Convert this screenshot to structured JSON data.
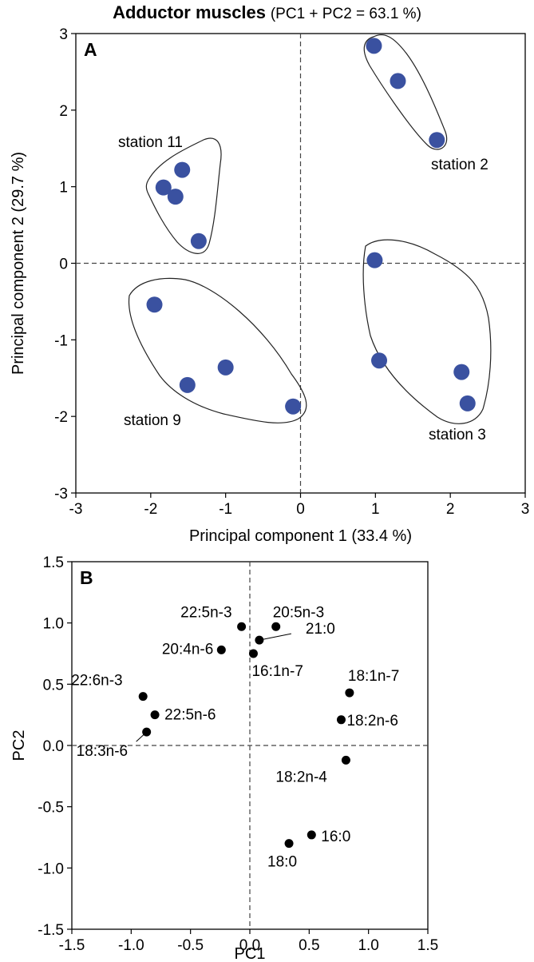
{
  "title": {
    "main": "Adductor muscles",
    "sub": "(PC1 + PC2 = 63.1 %)"
  },
  "chart_data": [
    {
      "type": "scatter",
      "panel_label": "A",
      "xlabel": "Principal component 1 (33.4 %)",
      "ylabel": "Principal component 2 (29.7 %)",
      "xlim": [
        -3,
        3
      ],
      "ylim": [
        -3,
        3
      ],
      "x_ticks": [
        "-3",
        "-2",
        "-1",
        "0",
        "1",
        "2",
        "3"
      ],
      "y_ticks": [
        "3",
        "2",
        "1",
        "0",
        "-1",
        "-2",
        "-3"
      ],
      "reference_lines": {
        "x": 0,
        "y": 0,
        "style": "dashed"
      },
      "marker_color": "#3a51a0",
      "groups": [
        {
          "label": "station 2",
          "points": [
            [
              0.98,
              2.84
            ],
            [
              1.3,
              2.38
            ],
            [
              1.82,
              1.61
            ]
          ]
        },
        {
          "label": "station 11",
          "points": [
            [
              -1.58,
              1.22
            ],
            [
              -1.83,
              0.99
            ],
            [
              -1.67,
              0.87
            ],
            [
              -1.36,
              0.29
            ]
          ]
        },
        {
          "label": "station 3",
          "points": [
            [
              0.99,
              0.04
            ],
            [
              1.05,
              -1.27
            ],
            [
              2.15,
              -1.42
            ],
            [
              2.23,
              -1.83
            ]
          ]
        },
        {
          "label": "station 9",
          "points": [
            [
              -1.95,
              -0.54
            ],
            [
              -1.51,
              -1.59
            ],
            [
              -1.0,
              -1.36
            ],
            [
              -0.1,
              -1.87
            ]
          ]
        }
      ]
    },
    {
      "type": "scatter",
      "panel_label": "B",
      "xlabel": "PC1",
      "ylabel": "PC2",
      "xlim": [
        -1.5,
        1.5
      ],
      "ylim": [
        -1.5,
        1.5
      ],
      "x_ticks": [
        "-1.5",
        "-1.0",
        "-0.5",
        "0.0",
        "0.5",
        "1.0",
        "1.5"
      ],
      "y_ticks": [
        "1.5",
        "1.0",
        "0.5",
        "0.0",
        "-0.5",
        "-1.0",
        "-1.5"
      ],
      "reference_lines": {
        "x": 0,
        "y": 0,
        "style": "dashed"
      },
      "marker_color": "#000000",
      "points": [
        {
          "label": "22:5n-3",
          "x": -0.07,
          "y": 0.97
        },
        {
          "label": "20:5n-3",
          "x": 0.22,
          "y": 0.97
        },
        {
          "label": "21:0",
          "x": 0.08,
          "y": 0.86
        },
        {
          "label": "20:4n-6",
          "x": -0.24,
          "y": 0.78
        },
        {
          "label": "16:1n-7",
          "x": 0.03,
          "y": 0.75
        },
        {
          "label": "22:6n-3",
          "x": -0.9,
          "y": 0.4
        },
        {
          "label": "22:5n-6",
          "x": -0.8,
          "y": 0.25
        },
        {
          "label": "18:3n-6",
          "x": -0.87,
          "y": 0.11
        },
        {
          "label": "18:1n-7",
          "x": 0.84,
          "y": 0.43
        },
        {
          "label": "18:2n-6",
          "x": 0.77,
          "y": 0.21
        },
        {
          "label": "18:2n-4",
          "x": 0.81,
          "y": -0.12
        },
        {
          "label": "16:0",
          "x": 0.52,
          "y": -0.73
        },
        {
          "label": "18:0",
          "x": 0.33,
          "y": -0.8
        }
      ]
    }
  ]
}
